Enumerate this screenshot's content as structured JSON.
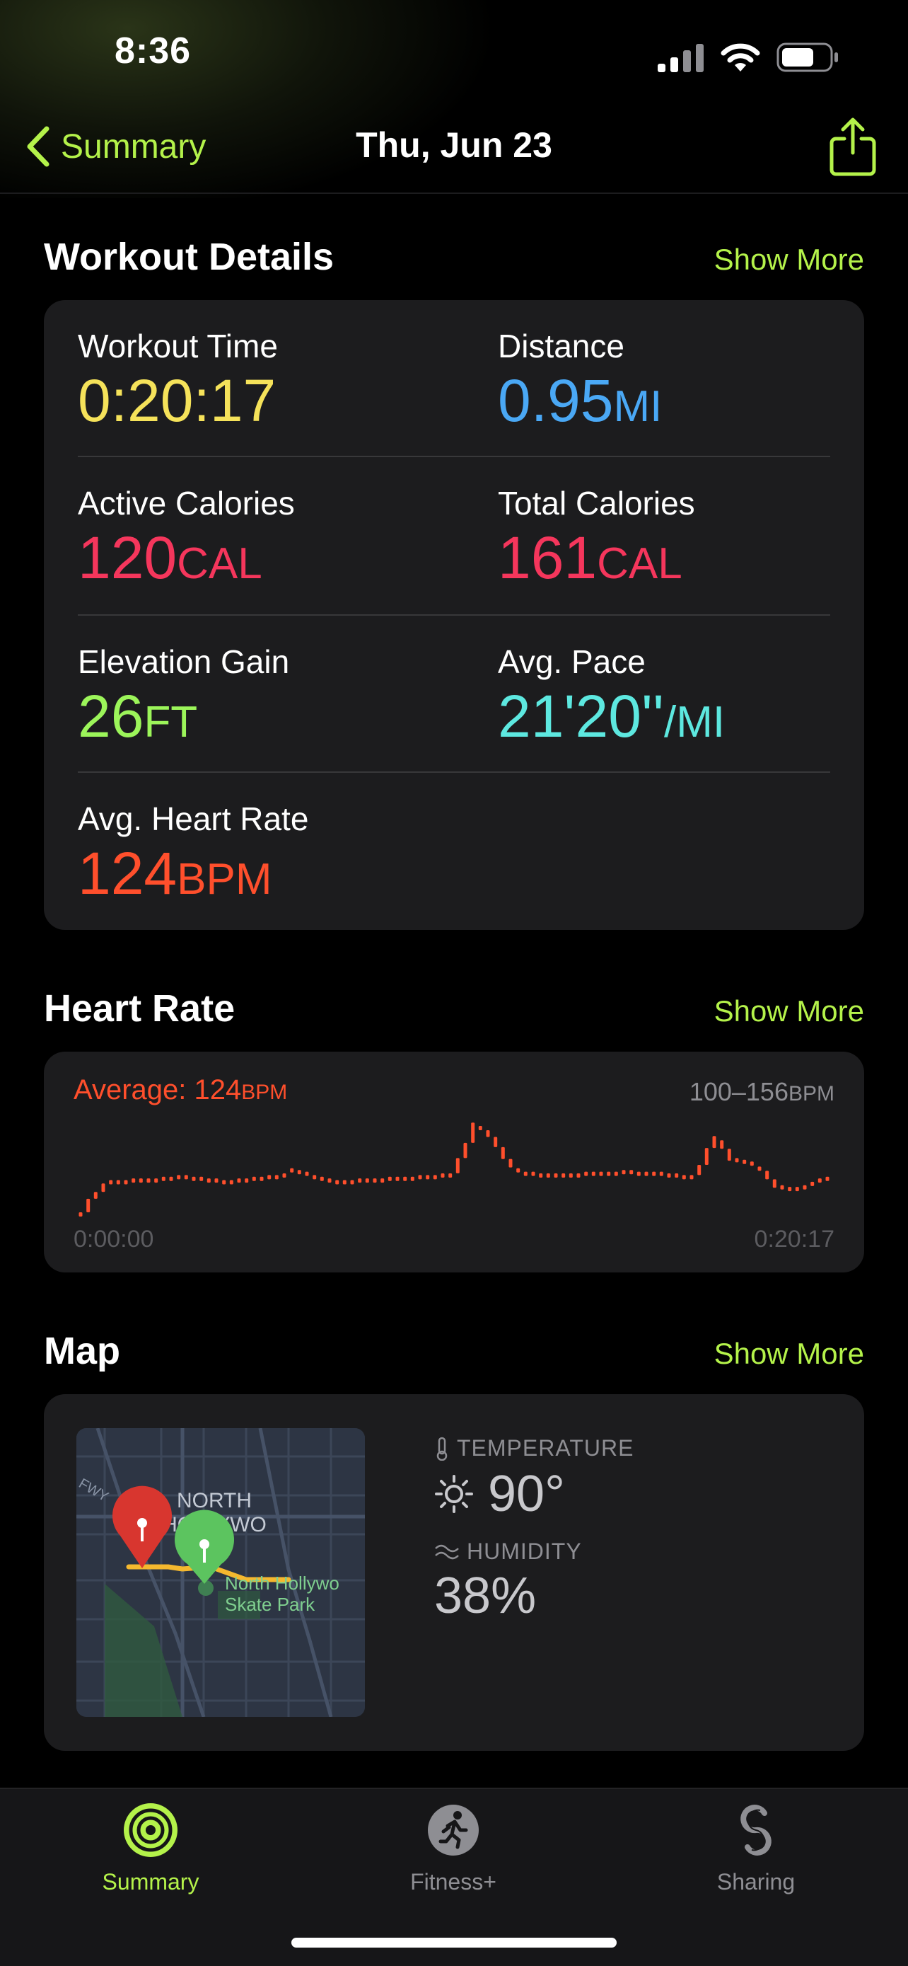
{
  "status": {
    "time": "8:36"
  },
  "nav": {
    "back_label": "Summary",
    "title": "Thu, Jun 23"
  },
  "workout_details": {
    "title": "Workout Details",
    "show_more": "Show More",
    "metrics": [
      {
        "label": "Workout Time",
        "value": "0:20:17",
        "unit": "",
        "color": "#f5e25a"
      },
      {
        "label": "Distance",
        "value": "0.95",
        "unit": "MI",
        "color": "#4aa8f5"
      },
      {
        "label": "Active Calories",
        "value": "120",
        "unit": "CAL",
        "color": "#f5365c"
      },
      {
        "label": "Total Calories",
        "value": "161",
        "unit": "CAL",
        "color": "#f5365c"
      },
      {
        "label": "Elevation Gain",
        "value": "26",
        "unit": "FT",
        "color": "#9cf55a"
      },
      {
        "label": "Avg. Pace",
        "value": "21'20''",
        "unit": "/MI",
        "color": "#5de8e0"
      },
      {
        "label": "Avg. Heart Rate",
        "value": "124",
        "unit": "BPM",
        "color": "#ff4f2c"
      }
    ]
  },
  "heart_rate": {
    "title": "Heart Rate",
    "show_more": "Show More",
    "average_prefix": "Average: 124",
    "average_unit": "BPM",
    "range_value": "100–156",
    "range_unit": "BPM",
    "time_start": "0:00:00",
    "time_end": "0:20:17",
    "color": "#ff4f2c"
  },
  "map": {
    "title": "Map",
    "show_more": "Show More",
    "map_label_line1": "NORTH",
    "map_label_line2": "HOLLYWO",
    "map_poi_line1": "North Hollywo",
    "map_poi_line2": "Skate Park",
    "map_road_label": "FWY",
    "temperature_label": "TEMPERATURE",
    "temperature_value": "90°",
    "humidity_label": "HUMIDITY",
    "humidity_value": "38%"
  },
  "tabs": [
    {
      "label": "Summary",
      "active": true
    },
    {
      "label": "Fitness+",
      "active": false
    },
    {
      "label": "Sharing",
      "active": false
    }
  ],
  "chart_data": {
    "type": "line",
    "title": "",
    "xlabel": "",
    "ylabel": "",
    "x_tick_labels": [
      "0:00:00",
      "0:20:17"
    ],
    "ylim": [
      100,
      156
    ],
    "series": [
      {
        "values": [
          100,
          108,
          112,
          117,
          119,
          119,
          119,
          120,
          120,
          120,
          120,
          121,
          121,
          122,
          122,
          121,
          121,
          120,
          120,
          119,
          119,
          120,
          120,
          121,
          121,
          122,
          122,
          123,
          126,
          125,
          124,
          122,
          121,
          120,
          119,
          119,
          119,
          120,
          120,
          120,
          120,
          121,
          121,
          121,
          121,
          122,
          122,
          122,
          123,
          123,
          132,
          141,
          153,
          151,
          147,
          141,
          134,
          129,
          126,
          124,
          124,
          123,
          123,
          123,
          123,
          123,
          123,
          124,
          124,
          124,
          124,
          124,
          125,
          125,
          124,
          124,
          124,
          124,
          123,
          123,
          122,
          122,
          128,
          138,
          145,
          140,
          133,
          132,
          131,
          130,
          127,
          122,
          117,
          116,
          115,
          115,
          116,
          118,
          120,
          121
        ]
      }
    ]
  }
}
